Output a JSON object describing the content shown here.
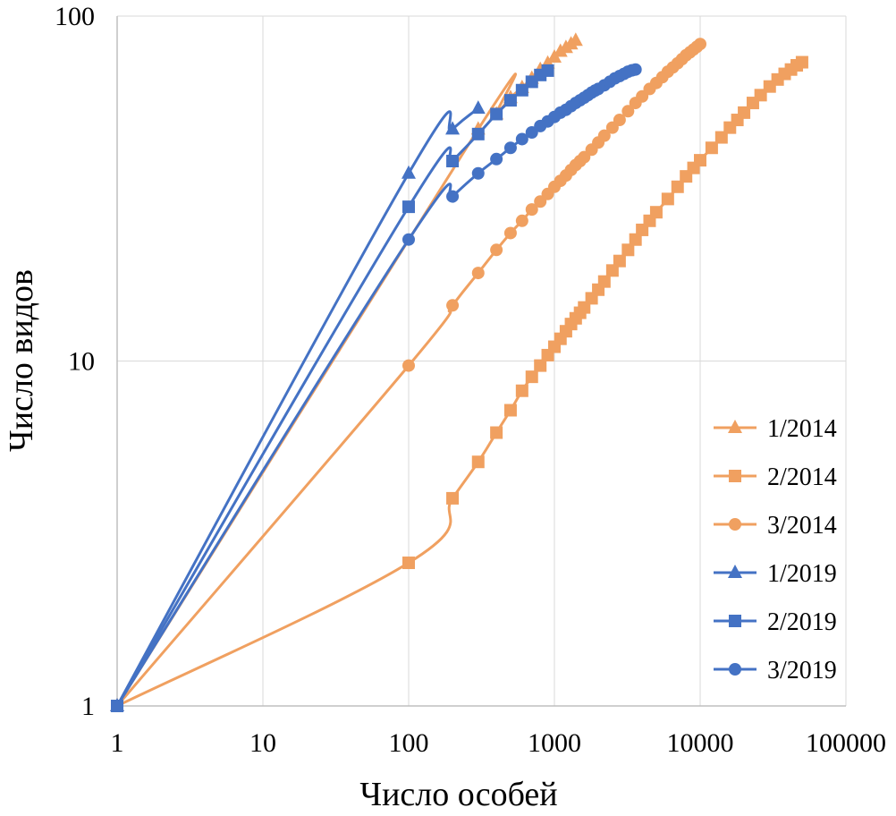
{
  "chart_data": {
    "type": "line",
    "xlabel": "Число особей",
    "ylabel": "Число видов",
    "xscale": "log",
    "yscale": "log",
    "xlim": [
      1,
      100000
    ],
    "ylim": [
      1,
      100
    ],
    "x_ticks": [
      "1",
      "10",
      "100",
      "1000",
      "10000",
      "100000"
    ],
    "y_ticks": [
      "1",
      "10",
      "100"
    ],
    "grid": true,
    "legend_position": "bottom-right",
    "colors": {
      "2014": "#f0a060",
      "2019": "#4472c4"
    },
    "series": [
      {
        "name": "1/2014",
        "color": "#f0a060",
        "marker": "triangle",
        "x": [
          1,
          300,
          400,
          500,
          600,
          700,
          800,
          900,
          1000,
          1100,
          1200,
          1300,
          1400
        ],
        "y": [
          1,
          47,
          52,
          58,
          62,
          66,
          70,
          73,
          76,
          79,
          81,
          83,
          85
        ]
      },
      {
        "name": "2/2014",
        "color": "#f0a060",
        "marker": "square",
        "x": [
          1,
          100,
          200,
          300,
          400,
          500,
          600,
          700,
          800,
          900,
          1000,
          1100,
          1200,
          1300,
          1400,
          1500,
          1600,
          1800,
          2000,
          2200,
          2500,
          2800,
          3200,
          3600,
          4000,
          4500,
          5000,
          6000,
          7000,
          8000,
          9000,
          10000,
          12000,
          14000,
          16000,
          18000,
          20000,
          23000,
          26000,
          30000,
          34000,
          38000,
          42000,
          46000,
          50000
        ],
        "y": [
          1,
          2.6,
          4,
          5.1,
          6.2,
          7.2,
          8.2,
          9,
          9.7,
          10.4,
          11,
          11.6,
          12.2,
          12.8,
          13.3,
          13.8,
          14.3,
          15.2,
          16.1,
          17,
          18.3,
          19.5,
          21,
          22.5,
          24,
          25.5,
          27,
          29.5,
          32,
          34.3,
          36.3,
          38.2,
          41.5,
          44.5,
          47.5,
          50,
          52.5,
          56,
          59,
          62.5,
          65.5,
          68,
          70,
          72,
          73.5
        ]
      },
      {
        "name": "3/2014",
        "color": "#f0a060",
        "marker": "circle",
        "x": [
          1,
          100,
          200,
          300,
          400,
          500,
          600,
          700,
          800,
          900,
          1000,
          1100,
          1200,
          1300,
          1400,
          1500,
          1600,
          1800,
          2000,
          2200,
          2500,
          2800,
          3200,
          3600,
          4000,
          4500,
          5000,
          5500,
          6000,
          6500,
          7000,
          7500,
          8000,
          8500,
          9000,
          9500,
          10000
        ],
        "y": [
          1,
          9.7,
          14.5,
          18,
          21,
          23.5,
          25.5,
          27.5,
          29,
          30.5,
          32,
          33.3,
          34.5,
          35.8,
          37,
          38,
          39,
          41,
          43,
          45,
          47.5,
          50,
          53,
          56,
          58.5,
          61.5,
          64,
          66.5,
          69,
          71,
          73,
          75,
          77,
          78.5,
          80,
          81.5,
          83
        ]
      },
      {
        "name": "1/2019",
        "color": "#4472c4",
        "marker": "triangle",
        "x": [
          1,
          100,
          200,
          300
        ],
        "y": [
          1,
          35,
          47,
          54
        ]
      },
      {
        "name": "2/2019",
        "color": "#4472c4",
        "marker": "square",
        "x": [
          1,
          100,
          200,
          300,
          400,
          500,
          600,
          700,
          800,
          900
        ],
        "y": [
          1,
          28,
          38,
          45.5,
          52,
          57,
          61,
          64.5,
          67.5,
          69.5
        ]
      },
      {
        "name": "3/2019",
        "color": "#4472c4",
        "marker": "circle",
        "x": [
          1,
          100,
          200,
          300,
          400,
          500,
          600,
          700,
          800,
          900,
          1000,
          1100,
          1200,
          1300,
          1400,
          1500,
          1600,
          1700,
          1800,
          1900,
          2000,
          2200,
          2400,
          2600,
          2800,
          3000,
          3200,
          3400,
          3600
        ],
        "y": [
          1,
          22.5,
          30,
          35,
          38.5,
          41.5,
          44,
          46,
          48,
          49.5,
          51,
          52.5,
          53.5,
          54.8,
          56,
          57,
          58,
          59,
          60,
          60.8,
          61.5,
          63,
          64.5,
          66,
          67,
          68,
          69,
          69.6,
          70
        ]
      }
    ]
  }
}
